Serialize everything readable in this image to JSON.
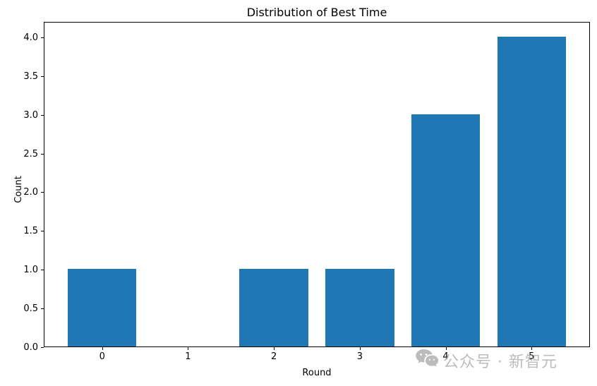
{
  "chart_data": {
    "type": "bar",
    "title": "Distribution of Best Time",
    "xlabel": "Round",
    "ylabel": "Count",
    "categories": [
      "0",
      "1",
      "2",
      "3",
      "4",
      "5"
    ],
    "values": [
      1,
      0,
      1,
      1,
      3,
      4
    ],
    "yticks": [
      0.0,
      0.5,
      1.0,
      1.5,
      2.0,
      2.5,
      3.0,
      3.5,
      4.0
    ],
    "ytick_labels": [
      "0.0",
      "0.5",
      "1.0",
      "1.5",
      "2.0",
      "2.5",
      "3.0",
      "3.5",
      "4.0"
    ],
    "xlim": [
      -0.68,
      5.68
    ],
    "ylim": [
      0,
      4.2
    ],
    "bar_width": 0.8,
    "bar_color": "#1f77b4",
    "grid": false,
    "legend_position": "none",
    "axis_color": "#000000"
  },
  "watermark": {
    "text": "公众号 · 新智元",
    "icon": "wechat-bubbles-icon",
    "color": "#a6a6a6"
  }
}
